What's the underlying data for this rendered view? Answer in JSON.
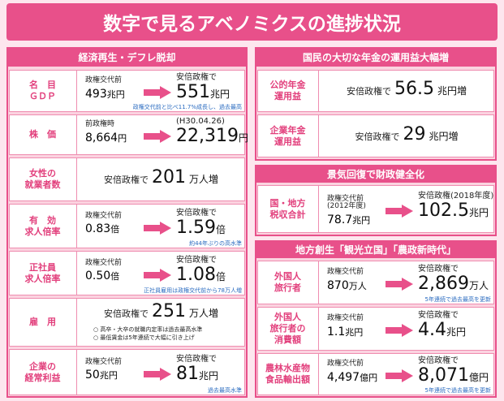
{
  "title": "数字で見るアベノミクスの進捗状況",
  "economy": {
    "heading": "経済再生・デフレ脱却",
    "rows": [
      {
        "label": "名　目\nＧＤＰ",
        "before": {
          "caption": "政権交代前",
          "num": "493",
          "unit": "兆円"
        },
        "after": {
          "caption": "安倍政権で",
          "num": "551",
          "unit": "兆円"
        },
        "note": "政権交代前と比べ11.7%成長し、過去最高"
      },
      {
        "label": "株　価",
        "before": {
          "caption": "前政権時",
          "num": "8,664",
          "unit": "円"
        },
        "after": {
          "caption": "(H30.04.26)",
          "num": "22,319",
          "unit": "円"
        }
      },
      {
        "label": "女性の\n就業者数",
        "single": {
          "caption": "安倍政権で",
          "num": "201",
          "unit": "万人増"
        }
      },
      {
        "label": "有　効\n求人倍率",
        "before": {
          "caption": "政権交代前",
          "num": "0.83",
          "unit": "倍"
        },
        "after": {
          "caption": "安倍政権で",
          "num": "1.59",
          "unit": "倍"
        },
        "note": "約44年ぶりの高水準"
      },
      {
        "label": "正社員\n求人倍率",
        "before": {
          "caption": "政権交代前",
          "num": "0.50",
          "unit": "倍"
        },
        "after": {
          "caption": "安倍政権で",
          "num": "1.08",
          "unit": "倍"
        },
        "note": "正社員雇用は政権交代前から78万人増"
      },
      {
        "label": "雇　用",
        "single": {
          "caption": "安倍政権で",
          "num": "251",
          "unit": "万人増"
        },
        "notes": [
          "○ 高卒・大卒の就職内定率は過去最高水準",
          "○ 最低賃金は5年連続で大幅に引き上げ"
        ]
      },
      {
        "label": "企業の\n経常利益",
        "before": {
          "caption": "政権交代前",
          "num": "50",
          "unit": "兆円"
        },
        "after": {
          "caption": "安倍政権で",
          "num": "81",
          "unit": "兆円"
        },
        "note": "過去最高水準"
      }
    ]
  },
  "pension": {
    "heading": "国民の大切な年金の運用益大幅増",
    "rows": [
      {
        "label": "公的年金\n運用益",
        "single": {
          "caption": "安倍政権で",
          "num": "56.5",
          "unit": "兆円増"
        }
      },
      {
        "label": "企業年金\n運用益",
        "single": {
          "caption": "安倍政権で",
          "num": "29",
          "unit": "兆円増"
        }
      }
    ]
  },
  "fiscal": {
    "heading": "景気回復で財政健全化",
    "rows": [
      {
        "label": "国・地方\n税収合計",
        "before": {
          "caption": "政権交代前\n(2012年度)",
          "num": "78.7",
          "unit": "兆円"
        },
        "after": {
          "caption": "安倍政権(2018年度)",
          "num": "102.5",
          "unit": "兆円"
        }
      }
    ]
  },
  "regional": {
    "heading": "地方創生「観光立国」「農政新時代」",
    "rows": [
      {
        "label": "外国人\n旅行者",
        "before": {
          "caption": "政権交代前",
          "num": "870",
          "unit": "万人"
        },
        "after": {
          "caption": "安倍政権で",
          "num": "2,869",
          "unit": "万人"
        },
        "note": "5年連続で過去最高を更新"
      },
      {
        "label": "外国人\n旅行者の\n消費額",
        "before": {
          "caption": "政権交代前",
          "num": "1.1",
          "unit": "兆円"
        },
        "after": {
          "caption": "安倍政権で",
          "num": "4.4",
          "unit": "兆円"
        }
      },
      {
        "label": "農林水産物\n食品輸出額",
        "before": {
          "caption": "政権交代前",
          "num": "4,497",
          "unit": "億円"
        },
        "after": {
          "caption": "安倍政権で",
          "num": "8,071",
          "unit": "億円"
        },
        "note": "5年連続で過去最高を更新"
      }
    ]
  }
}
